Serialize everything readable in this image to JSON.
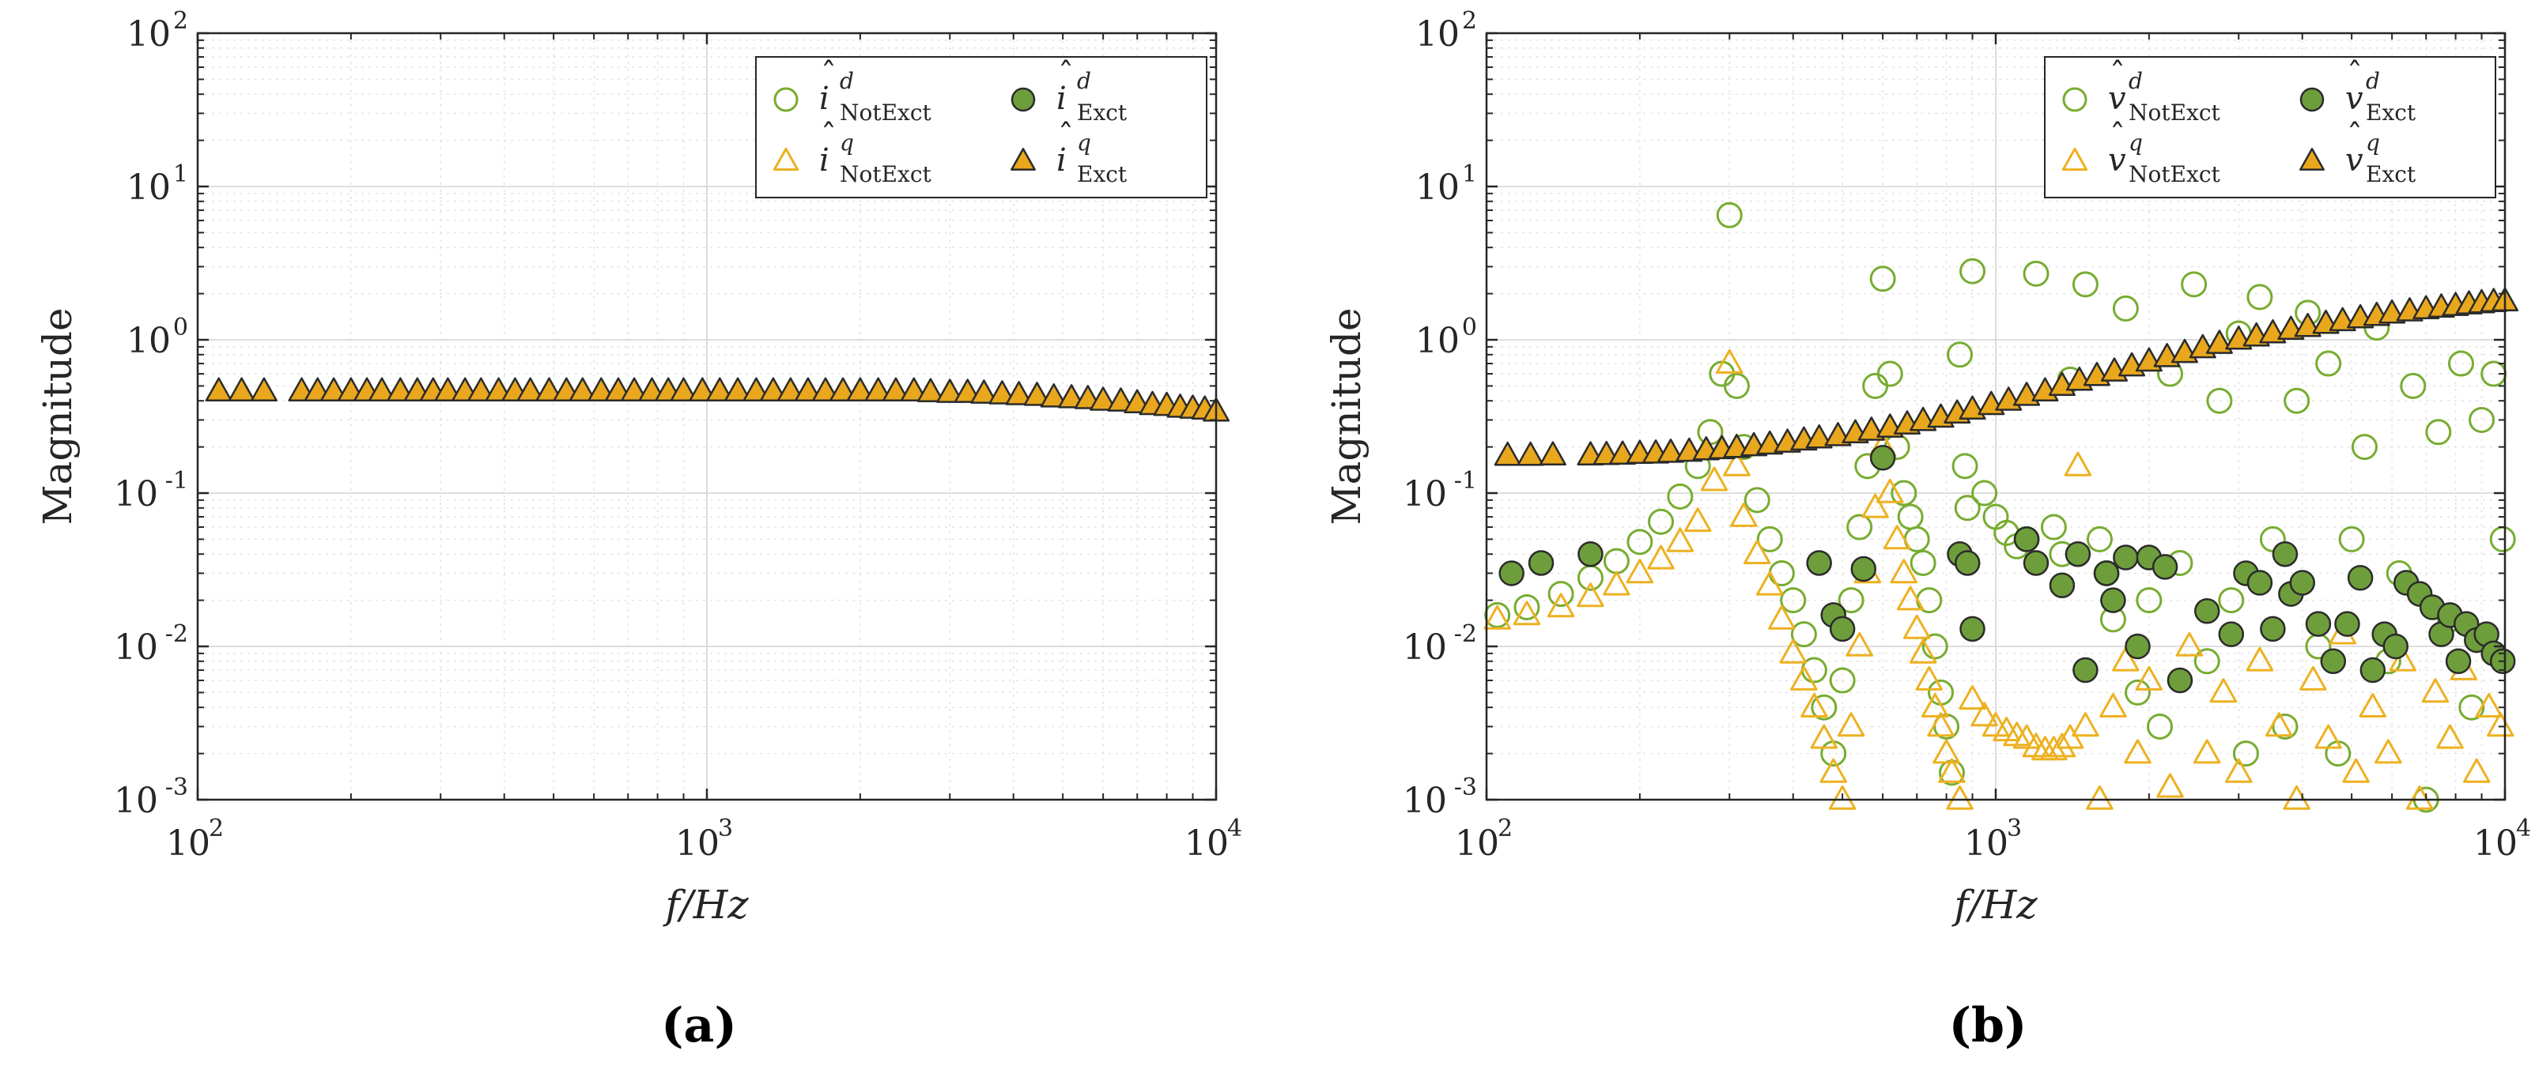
{
  "colors": {
    "green": "#77AC30",
    "green_fill": "#6E9E3B",
    "orange": "#EDB120",
    "orange_fill": "#E8A71C",
    "axis": "#262626",
    "grid": "#d9d9d9"
  },
  "chart_data": [
    {
      "type": "scatter",
      "panel_label": "(a)",
      "xlabel": "f/Hz",
      "ylabel": "Magnitude",
      "xscale": "log",
      "yscale": "log",
      "xlim": [
        100,
        10000
      ],
      "ylim": [
        0.001,
        100
      ],
      "x_ticks": [
        {
          "base": "10",
          "exp": "2"
        },
        {
          "base": "10",
          "exp": "3"
        },
        {
          "base": "10",
          "exp": "4"
        }
      ],
      "y_ticks": [
        {
          "base": "10",
          "exp": "-3"
        },
        {
          "base": "10",
          "exp": "-2"
        },
        {
          "base": "10",
          "exp": "-1"
        },
        {
          "base": "10",
          "exp": "0"
        },
        {
          "base": "10",
          "exp": "1"
        },
        {
          "base": "10",
          "exp": "2"
        }
      ],
      "grid": true,
      "legend_position": "top-right",
      "legend": [
        {
          "sym": "i",
          "sup": "d",
          "sub": "NotExct",
          "marker": "open-circle",
          "color": "green"
        },
        {
          "sym": "i",
          "sup": "d",
          "sub": "Exct",
          "marker": "filled-circle",
          "color": "green"
        },
        {
          "sym": "i",
          "sup": "q",
          "sub": "NotExct",
          "marker": "open-triangle",
          "color": "orange"
        },
        {
          "sym": "i",
          "sup": "q",
          "sub": "Exct",
          "marker": "filled-triangle",
          "color": "orange"
        }
      ],
      "series": [
        {
          "name": "i^q_Exct",
          "marker": "filled-triangle",
          "color": "orange",
          "x": [
            110,
            122,
            135,
            160,
            172,
            185,
            200,
            215,
            230,
            250,
            270,
            290,
            310,
            335,
            360,
            390,
            420,
            450,
            490,
            530,
            570,
            620,
            670,
            720,
            780,
            840,
            900,
            980,
            1060,
            1150,
            1250,
            1350,
            1460,
            1580,
            1710,
            1850,
            2000,
            2170,
            2350,
            2550,
            2750,
            3000,
            3250,
            3500,
            3800,
            4100,
            4450,
            4800,
            5200,
            5600,
            6000,
            6500,
            7000,
            7500,
            8000,
            8500,
            9000,
            9500,
            10000
          ],
          "y": [
            0.46,
            0.46,
            0.46,
            0.46,
            0.46,
            0.46,
            0.46,
            0.46,
            0.46,
            0.46,
            0.46,
            0.46,
            0.46,
            0.46,
            0.46,
            0.46,
            0.46,
            0.46,
            0.46,
            0.46,
            0.46,
            0.46,
            0.46,
            0.46,
            0.46,
            0.46,
            0.46,
            0.46,
            0.46,
            0.46,
            0.46,
            0.46,
            0.46,
            0.46,
            0.46,
            0.46,
            0.46,
            0.46,
            0.46,
            0.46,
            0.455,
            0.45,
            0.45,
            0.445,
            0.44,
            0.435,
            0.43,
            0.42,
            0.415,
            0.41,
            0.4,
            0.395,
            0.385,
            0.375,
            0.37,
            0.36,
            0.355,
            0.35,
            0.34
          ]
        }
      ]
    },
    {
      "type": "scatter",
      "panel_label": "(b)",
      "xlabel": "f/Hz",
      "ylabel": "Magnitude",
      "xscale": "log",
      "yscale": "log",
      "xlim": [
        100,
        10000
      ],
      "ylim": [
        0.001,
        100
      ],
      "x_ticks": [
        {
          "base": "10",
          "exp": "2"
        },
        {
          "base": "10",
          "exp": "3"
        },
        {
          "base": "10",
          "exp": "4"
        }
      ],
      "y_ticks": [
        {
          "base": "10",
          "exp": "-3"
        },
        {
          "base": "10",
          "exp": "-2"
        },
        {
          "base": "10",
          "exp": "-1"
        },
        {
          "base": "10",
          "exp": "0"
        },
        {
          "base": "10",
          "exp": "1"
        },
        {
          "base": "10",
          "exp": "2"
        }
      ],
      "grid": true,
      "legend_position": "top-right",
      "legend": [
        {
          "sym": "v",
          "sup": "d",
          "sub": "NotExct",
          "marker": "open-circle",
          "color": "green"
        },
        {
          "sym": "v",
          "sup": "d",
          "sub": "Exct",
          "marker": "filled-circle",
          "color": "green"
        },
        {
          "sym": "v",
          "sup": "q",
          "sub": "NotExct",
          "marker": "open-triangle",
          "color": "orange"
        },
        {
          "sym": "v",
          "sup": "q",
          "sub": "Exct",
          "marker": "filled-triangle",
          "color": "orange"
        }
      ],
      "series": [
        {
          "name": "v^d_NotExct",
          "marker": "open-circle",
          "color": "green",
          "x": [
            105,
            120,
            140,
            160,
            180,
            200,
            220,
            240,
            260,
            275,
            290,
            300,
            310,
            320,
            340,
            360,
            380,
            400,
            420,
            440,
            460,
            480,
            500,
            520,
            540,
            560,
            580,
            600,
            620,
            640,
            660,
            680,
            700,
            720,
            740,
            760,
            780,
            800,
            820,
            850,
            870,
            880,
            900,
            950,
            1000,
            1050,
            1100,
            1150,
            1200,
            1300,
            1350,
            1400,
            1500,
            1600,
            1650,
            1700,
            1800,
            1900,
            2000,
            2100,
            2200,
            2300,
            2450,
            2600,
            2750,
            2900,
            3000,
            3100,
            3300,
            3500,
            3700,
            3900,
            4100,
            4300,
            4500,
            4700,
            5000,
            5300,
            5600,
            5900,
            6200,
            6600,
            7000,
            7400,
            7800,
            8200,
            8600,
            9000,
            9500,
            9900
          ],
          "y": [
            0.016,
            0.018,
            0.022,
            0.028,
            0.036,
            0.048,
            0.065,
            0.095,
            0.15,
            0.25,
            0.6,
            6.5,
            0.5,
            0.2,
            0.09,
            0.05,
            0.03,
            0.02,
            0.012,
            0.007,
            0.004,
            0.002,
            0.006,
            0.02,
            0.06,
            0.15,
            0.5,
            2.5,
            0.6,
            0.2,
            0.1,
            0.07,
            0.05,
            0.035,
            0.02,
            0.01,
            0.005,
            0.003,
            0.0015,
            0.8,
            0.15,
            0.08,
            2.8,
            0.1,
            0.07,
            0.055,
            0.045,
            0.05,
            2.7,
            0.06,
            0.04,
            0.55,
            2.3,
            0.05,
            0.03,
            0.015,
            1.6,
            0.005,
            0.02,
            0.003,
            0.6,
            0.035,
            2.3,
            0.008,
            0.4,
            0.02,
            1.1,
            0.002,
            1.9,
            0.05,
            0.003,
            0.4,
            1.5,
            0.01,
            0.7,
            0.002,
            0.05,
            0.2,
            1.2,
            0.008,
            0.03,
            0.5,
            0.001,
            0.25,
            0.015,
            0.7,
            0.004,
            0.3,
            0.6,
            0.05
          ]
        },
        {
          "name": "v^q_NotExct",
          "marker": "open-triangle",
          "color": "orange",
          "x": [
            105,
            120,
            140,
            160,
            180,
            200,
            220,
            240,
            260,
            280,
            300,
            310,
            320,
            340,
            360,
            380,
            400,
            420,
            440,
            460,
            480,
            500,
            520,
            540,
            560,
            580,
            600,
            620,
            640,
            660,
            680,
            700,
            720,
            740,
            760,
            780,
            800,
            820,
            850,
            900,
            950,
            1000,
            1050,
            1100,
            1150,
            1200,
            1250,
            1300,
            1350,
            1400,
            1450,
            1500,
            1600,
            1700,
            1800,
            1900,
            2000,
            2200,
            2400,
            2600,
            2800,
            3000,
            3300,
            3600,
            3900,
            4200,
            4500,
            4800,
            5100,
            5500,
            5900,
            6300,
            6800,
            7300,
            7800,
            8300,
            8800,
            9300,
            9800
          ],
          "y": [
            0.015,
            0.016,
            0.018,
            0.021,
            0.025,
            0.03,
            0.037,
            0.048,
            0.065,
            0.12,
            0.7,
            0.15,
            0.07,
            0.04,
            0.025,
            0.015,
            0.009,
            0.006,
            0.004,
            0.0025,
            0.0015,
            0.001,
            0.003,
            0.01,
            0.03,
            0.08,
            0.2,
            0.1,
            0.05,
            0.03,
            0.02,
            0.013,
            0.009,
            0.006,
            0.004,
            0.003,
            0.002,
            0.0015,
            0.001,
            0.0045,
            0.0035,
            0.003,
            0.0028,
            0.0026,
            0.0025,
            0.0022,
            0.0021,
            0.0021,
            0.0022,
            0.0025,
            0.15,
            0.003,
            0.001,
            0.004,
            0.008,
            0.002,
            0.006,
            0.0012,
            0.01,
            0.002,
            0.005,
            0.0015,
            0.008,
            0.003,
            0.001,
            0.006,
            0.0025,
            0.012,
            0.0015,
            0.004,
            0.002,
            0.008,
            0.001,
            0.005,
            0.0025,
            0.007,
            0.0015,
            0.004,
            0.003
          ]
        },
        {
          "name": "v^q_Exct",
          "marker": "filled-triangle",
          "color": "orange",
          "x": [
            110,
            122,
            135,
            160,
            172,
            185,
            200,
            215,
            230,
            250,
            270,
            290,
            310,
            335,
            360,
            390,
            420,
            450,
            490,
            530,
            570,
            620,
            670,
            720,
            780,
            840,
            900,
            980,
            1060,
            1150,
            1250,
            1350,
            1460,
            1580,
            1710,
            1850,
            2000,
            2170,
            2350,
            2550,
            2750,
            3000,
            3250,
            3500,
            3800,
            4100,
            4450,
            4800,
            5200,
            5600,
            6000,
            6500,
            7000,
            7500,
            8000,
            8500,
            9000,
            9500,
            10000
          ],
          "y": [
            0.175,
            0.175,
            0.176,
            0.176,
            0.177,
            0.178,
            0.18,
            0.181,
            0.183,
            0.186,
            0.19,
            0.193,
            0.197,
            0.202,
            0.207,
            0.213,
            0.22,
            0.227,
            0.235,
            0.245,
            0.255,
            0.267,
            0.28,
            0.295,
            0.31,
            0.33,
            0.35,
            0.375,
            0.4,
            0.43,
            0.46,
            0.5,
            0.54,
            0.58,
            0.62,
            0.67,
            0.72,
            0.77,
            0.82,
            0.88,
            0.94,
            1.0,
            1.05,
            1.1,
            1.16,
            1.21,
            1.27,
            1.32,
            1.38,
            1.43,
            1.48,
            1.53,
            1.58,
            1.62,
            1.66,
            1.7,
            1.73,
            1.76,
            1.78
          ]
        },
        {
          "name": "v^d_Exct",
          "marker": "filled-circle",
          "color": "green",
          "x": [
            112,
            128,
            160,
            450,
            480,
            500,
            550,
            600,
            850,
            880,
            900,
            1150,
            1200,
            1350,
            1450,
            1500,
            1650,
            1700,
            1800,
            1900,
            2000,
            2150,
            2300,
            2600,
            2900,
            3100,
            3300,
            3500,
            3700,
            3800,
            4000,
            4300,
            4600,
            4900,
            5200,
            5500,
            5800,
            6100,
            6400,
            6800,
            7200,
            7500,
            7800,
            8100,
            8400,
            8800,
            9200,
            9500,
            9900
          ],
          "y": [
            0.03,
            0.035,
            0.04,
            0.035,
            0.016,
            0.013,
            0.032,
            0.17,
            0.04,
            0.035,
            0.013,
            0.05,
            0.035,
            0.025,
            0.04,
            0.007,
            0.03,
            0.02,
            0.038,
            0.01,
            0.038,
            0.033,
            0.006,
            0.017,
            0.012,
            0.03,
            0.026,
            0.013,
            0.04,
            0.022,
            0.026,
            0.014,
            0.008,
            0.014,
            0.028,
            0.007,
            0.012,
            0.01,
            0.026,
            0.022,
            0.018,
            0.012,
            0.016,
            0.008,
            0.014,
            0.011,
            0.012,
            0.009,
            0.008
          ]
        }
      ]
    }
  ]
}
